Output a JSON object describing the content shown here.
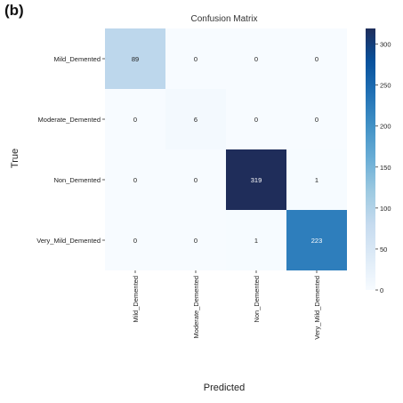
{
  "panel_label": "(b)",
  "chart_data": {
    "type": "heatmap",
    "title": "Confusion Matrix",
    "xlabel": "Predicted",
    "ylabel": "True",
    "x_categories": [
      "Mild_Demented",
      "Moderate_Demented",
      "Non_Demented",
      "Very_Mild_Demented"
    ],
    "y_categories": [
      "Mild_Demented",
      "Moderate_Demented",
      "Non_Demented",
      "Very_Mild_Demented"
    ],
    "values": [
      [
        89,
        0,
        0,
        0
      ],
      [
        0,
        6,
        0,
        0
      ],
      [
        0,
        0,
        319,
        1
      ],
      [
        0,
        0,
        1,
        223
      ]
    ],
    "colorbar": {
      "min": 0,
      "max": 319,
      "ticks": [
        0,
        50,
        100,
        150,
        200,
        250,
        300
      ],
      "colormap": "Blues",
      "colors": [
        "#f7fbff",
        "#deebf7",
        "#c6dbef",
        "#9ecae1",
        "#6baed6",
        "#4292c6",
        "#2171b5",
        "#08519c",
        "#1f2d5a"
      ]
    }
  }
}
